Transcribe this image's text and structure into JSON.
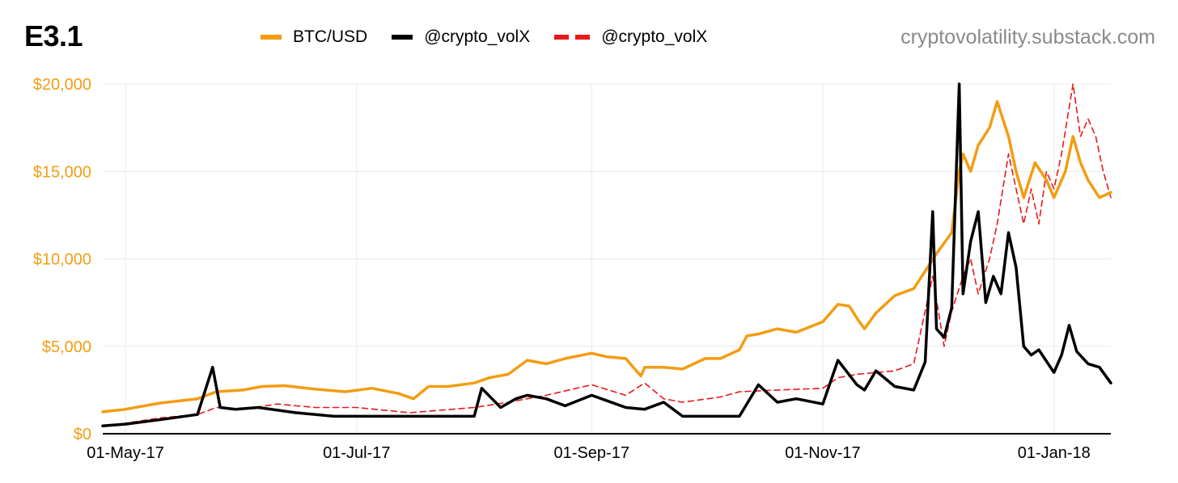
{
  "title": "E3.1",
  "credit": "cryptovolatility.substack.com",
  "colors": {
    "btc": "#f39c12",
    "vol": "#000000",
    "vol_dashed": "#e8181b",
    "grid": "#e9e9e9"
  },
  "legend": [
    {
      "label": "BTC/USD",
      "style": "solid-orange"
    },
    {
      "label": "@crypto_volX",
      "style": "solid-black"
    },
    {
      "label": "@crypto_volX",
      "style": "dashed-red"
    }
  ],
  "chart_data": {
    "type": "line",
    "title": "",
    "xlabel": "",
    "ylabel": "",
    "ylim": [
      0,
      20000
    ],
    "yticks": [
      0,
      5000,
      10000,
      15000,
      20000
    ],
    "ytick_labels": [
      "$0",
      "$5,000",
      "$10,000",
      "$15,000",
      "$20,000"
    ],
    "xlim": [
      "2017-04-25",
      "2018-01-16"
    ],
    "xticks": [
      "2017-05-01",
      "2017-07-01",
      "2017-09-01",
      "2017-11-01",
      "2018-01-01"
    ],
    "xtick_labels": [
      "01-May-17",
      "01-Jul-17",
      "01-Sep-17",
      "01-Nov-17",
      "01-Jan-18"
    ],
    "grid": true,
    "legend_position": "top",
    "series": [
      {
        "name": "BTC/USD",
        "style": "solid",
        "x": [
          "2017-04-25",
          "2017-05-01",
          "2017-05-10",
          "2017-05-20",
          "2017-05-25",
          "2017-06-01",
          "2017-06-06",
          "2017-06-12",
          "2017-06-20",
          "2017-06-28",
          "2017-07-05",
          "2017-07-12",
          "2017-07-16",
          "2017-07-20",
          "2017-07-25",
          "2017-08-01",
          "2017-08-05",
          "2017-08-10",
          "2017-08-15",
          "2017-08-20",
          "2017-08-25",
          "2017-09-01",
          "2017-09-05",
          "2017-09-10",
          "2017-09-14",
          "2017-09-15",
          "2017-09-20",
          "2017-09-25",
          "2017-10-01",
          "2017-10-05",
          "2017-10-10",
          "2017-10-12",
          "2017-10-15",
          "2017-10-20",
          "2017-10-25",
          "2017-11-01",
          "2017-11-05",
          "2017-11-08",
          "2017-11-10",
          "2017-11-12",
          "2017-11-15",
          "2017-11-20",
          "2017-11-25",
          "2017-11-28",
          "2017-12-01",
          "2017-12-05",
          "2017-12-07",
          "2017-12-08",
          "2017-12-10",
          "2017-12-12",
          "2017-12-15",
          "2017-12-17",
          "2017-12-20",
          "2017-12-22",
          "2017-12-24",
          "2017-12-27",
          "2017-12-30",
          "2018-01-01",
          "2018-01-04",
          "2018-01-06",
          "2018-01-08",
          "2018-01-10",
          "2018-01-13",
          "2018-01-16"
        ],
        "values": [
          1250,
          1400,
          1750,
          2000,
          2400,
          2500,
          2700,
          2750,
          2550,
          2400,
          2600,
          2300,
          2000,
          2700,
          2700,
          2900,
          3200,
          3400,
          4200,
          4000,
          4300,
          4600,
          4400,
          4300,
          3300,
          3800,
          3800,
          3700,
          4300,
          4300,
          4800,
          5600,
          5700,
          6000,
          5800,
          6400,
          7400,
          7300,
          6600,
          6000,
          6900,
          7900,
          8300,
          9300,
          10300,
          11500,
          15000,
          16000,
          15000,
          16500,
          17500,
          19000,
          17000,
          15000,
          13500,
          15500,
          14500,
          13500,
          15000,
          17000,
          15500,
          14500,
          13500,
          13800
        ]
      },
      {
        "name": "@crypto_volX",
        "style": "solid",
        "x": [
          "2017-04-25",
          "2017-05-01",
          "2017-05-10",
          "2017-05-20",
          "2017-05-24",
          "2017-05-26",
          "2017-05-30",
          "2017-06-05",
          "2017-06-15",
          "2017-06-25",
          "2017-07-05",
          "2017-07-15",
          "2017-07-25",
          "2017-08-01",
          "2017-08-03",
          "2017-08-08",
          "2017-08-12",
          "2017-08-15",
          "2017-08-20",
          "2017-08-25",
          "2017-09-01",
          "2017-09-10",
          "2017-09-15",
          "2017-09-20",
          "2017-09-25",
          "2017-10-01",
          "2017-10-05",
          "2017-10-10",
          "2017-10-15",
          "2017-10-20",
          "2017-10-25",
          "2017-11-01",
          "2017-11-05",
          "2017-11-10",
          "2017-11-12",
          "2017-11-15",
          "2017-11-20",
          "2017-11-25",
          "2017-11-28",
          "2017-11-30",
          "2017-12-01",
          "2017-12-03",
          "2017-12-05",
          "2017-12-07",
          "2017-12-08",
          "2017-12-10",
          "2017-12-12",
          "2017-12-14",
          "2017-12-16",
          "2017-12-18",
          "2017-12-20",
          "2017-12-22",
          "2017-12-24",
          "2017-12-26",
          "2017-12-28",
          "2018-01-01",
          "2018-01-03",
          "2018-01-05",
          "2018-01-07",
          "2018-01-10",
          "2018-01-13",
          "2018-01-16"
        ],
        "values": [
          450,
          550,
          800,
          1100,
          3800,
          1500,
          1400,
          1500,
          1200,
          1000,
          1000,
          1000,
          1000,
          1000,
          2600,
          1500,
          2000,
          2200,
          2000,
          1600,
          2200,
          1500,
          1400,
          1800,
          1000,
          1000,
          1000,
          1000,
          2800,
          1800,
          2000,
          1700,
          4200,
          2800,
          2500,
          3600,
          2700,
          2500,
          4100,
          12700,
          6000,
          5500,
          7200,
          20000,
          8000,
          11000,
          12700,
          7500,
          9000,
          8000,
          11500,
          9500,
          5000,
          4500,
          4800,
          3500,
          4500,
          6200,
          4700,
          4000,
          3800,
          2900
        ]
      },
      {
        "name": "@crypto_volX",
        "style": "dashed",
        "x": [
          "2017-04-25",
          "2017-05-01",
          "2017-05-10",
          "2017-05-20",
          "2017-05-25",
          "2017-06-01",
          "2017-06-10",
          "2017-06-20",
          "2017-07-01",
          "2017-07-15",
          "2017-08-01",
          "2017-08-10",
          "2017-08-20",
          "2017-09-01",
          "2017-09-10",
          "2017-09-15",
          "2017-09-20",
          "2017-09-25",
          "2017-10-05",
          "2017-10-10",
          "2017-10-20",
          "2017-11-01",
          "2017-11-05",
          "2017-11-10",
          "2017-11-15",
          "2017-11-20",
          "2017-11-25",
          "2017-11-30",
          "2017-12-03",
          "2017-12-05",
          "2017-12-08",
          "2017-12-10",
          "2017-12-12",
          "2017-12-15",
          "2017-12-17",
          "2017-12-20",
          "2017-12-22",
          "2017-12-24",
          "2017-12-26",
          "2017-12-28",
          "2017-12-30",
          "2018-01-01",
          "2018-01-03",
          "2018-01-06",
          "2018-01-08",
          "2018-01-10",
          "2018-01-12",
          "2018-01-14",
          "2018-01-16"
        ],
        "values": [
          400,
          600,
          900,
          1100,
          1500,
          1400,
          1700,
          1500,
          1500,
          1200,
          1500,
          1800,
          2200,
          2800,
          2200,
          2900,
          2000,
          1800,
          2100,
          2400,
          2500,
          2600,
          3200,
          3400,
          3500,
          3600,
          4000,
          9000,
          5000,
          7000,
          9000,
          10000,
          8000,
          10000,
          12000,
          16000,
          14000,
          12000,
          14000,
          12000,
          15000,
          14000,
          16000,
          20000,
          17000,
          18000,
          17000,
          15000,
          13500
        ]
      }
    ]
  }
}
